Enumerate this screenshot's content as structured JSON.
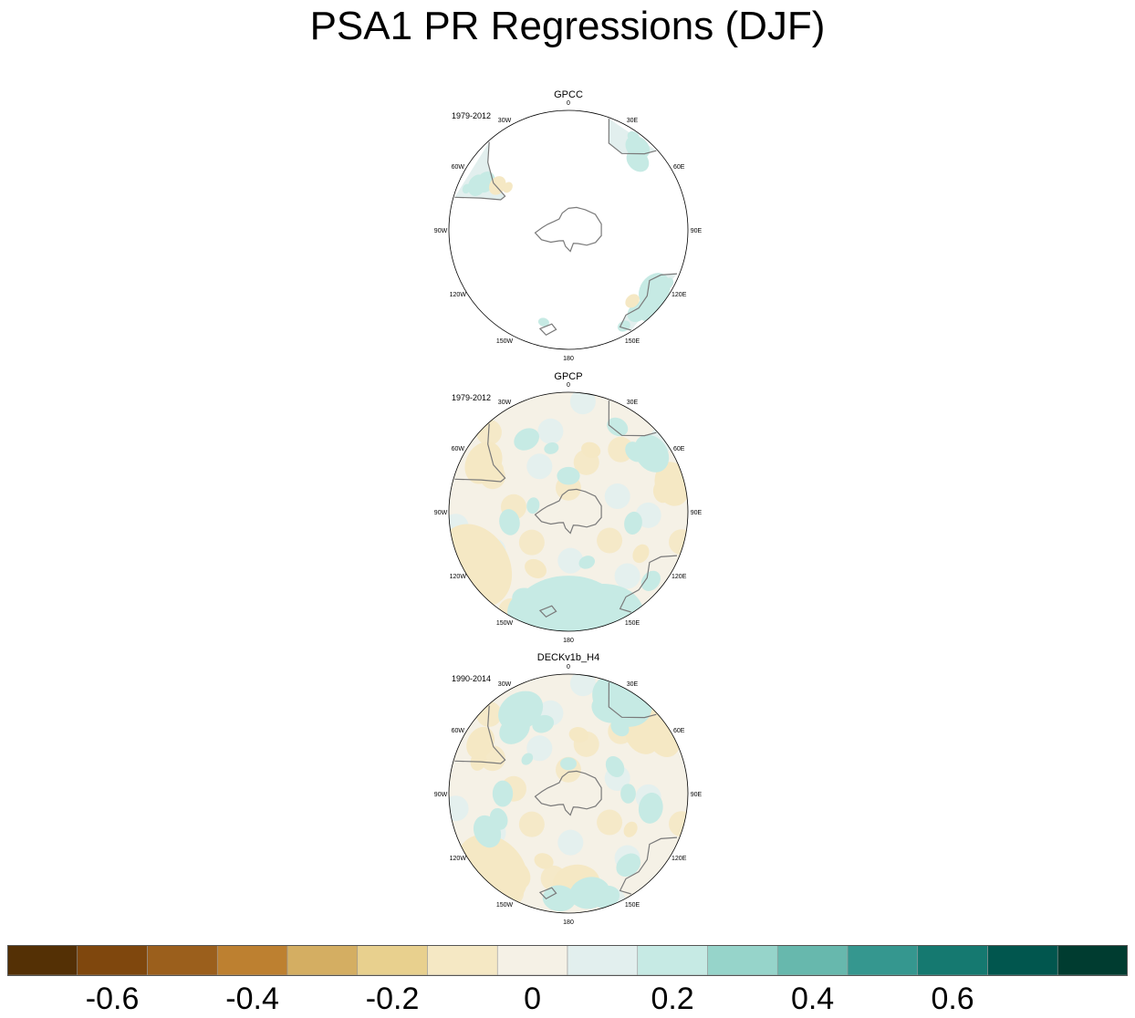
{
  "title": "PSA1 PR Regressions (DJF)",
  "panels": [
    {
      "name": "GPCC",
      "period": "1979-2012",
      "pattern": "gpcc"
    },
    {
      "name": "GPCP",
      "period": "1979-2012",
      "pattern": "gpcp"
    },
    {
      "name": "DECKv1b_H4",
      "period": "1990-2014",
      "pattern": "deck"
    }
  ],
  "lon_labels": [
    {
      "text": "0",
      "lon": 0
    },
    {
      "text": "30E",
      "lon": 30
    },
    {
      "text": "60E",
      "lon": 60
    },
    {
      "text": "90E",
      "lon": 90
    },
    {
      "text": "120E",
      "lon": 120
    },
    {
      "text": "150E",
      "lon": 150
    },
    {
      "text": "180",
      "lon": 180
    },
    {
      "text": "150W",
      "lon": 210
    },
    {
      "text": "120W",
      "lon": 240
    },
    {
      "text": "90W",
      "lon": 270
    },
    {
      "text": "60W",
      "lon": 300
    },
    {
      "text": "30W",
      "lon": 330
    }
  ],
  "colorbar": {
    "colors": [
      "#543005",
      "#7f470d",
      "#9b5f1c",
      "#bd8030",
      "#d4ae62",
      "#e8d08e",
      "#f5e8c4",
      "#f5f1e6",
      "#e2efee",
      "#c6eae4",
      "#96d4ca",
      "#67b8ad",
      "#35978f",
      "#157970",
      "#01564e",
      "#003c30"
    ],
    "tick_labels": [
      "-0.6",
      "-0.4",
      "-0.2",
      "0",
      "0.2",
      "0.4",
      "0.6"
    ],
    "tick_positions": [
      1,
      3,
      5,
      7,
      9,
      11,
      13
    ]
  }
}
